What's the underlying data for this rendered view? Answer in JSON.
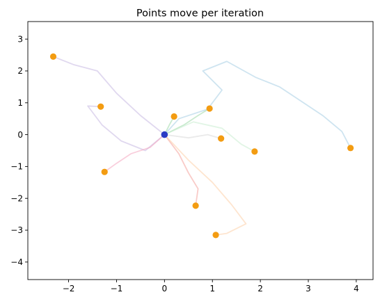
{
  "chart_data": {
    "type": "line",
    "title": "Points move per iteration",
    "xlabel": "",
    "ylabel": "",
    "xlim": [
      -2.85,
      4.35
    ],
    "ylim": [
      -4.55,
      3.55
    ],
    "xticks": [
      -2,
      -1,
      0,
      1,
      2,
      3,
      4
    ],
    "yticks": [
      -4,
      -3,
      -2,
      -1,
      0,
      1,
      2,
      3
    ],
    "grid": false,
    "legend": "none",
    "start_point": {
      "x": 0,
      "y": 0,
      "color": "#2b3bc4"
    },
    "endpoints": {
      "color": "#f39c12",
      "x": [
        -2.32,
        -1.33,
        -1.25,
        0.2,
        0.65,
        0.94,
        1.07,
        1.18,
        1.88,
        3.88
      ],
      "y": [
        2.45,
        0.88,
        -1.17,
        0.57,
        -2.23,
        0.82,
        -3.15,
        -0.12,
        -0.53,
        -0.42
      ]
    },
    "trajectories": [
      {
        "color": "#a6cee3",
        "points": [
          [
            0,
            0
          ],
          [
            0.3,
            0.5
          ],
          [
            0.9,
            0.8
          ],
          [
            1.2,
            1.4
          ],
          [
            0.8,
            2.0
          ],
          [
            1.3,
            2.3
          ],
          [
            1.9,
            1.8
          ],
          [
            2.4,
            1.5
          ],
          [
            2.9,
            1.0
          ],
          [
            3.3,
            0.6
          ],
          [
            3.7,
            0.1
          ],
          [
            3.88,
            -0.42
          ]
        ]
      },
      {
        "color": "#c7b8e2",
        "points": [
          [
            0,
            0
          ],
          [
            -0.5,
            0.6
          ],
          [
            -1.0,
            1.3
          ],
          [
            -1.4,
            2.0
          ],
          [
            -1.9,
            2.2
          ],
          [
            -2.32,
            2.45
          ]
        ]
      },
      {
        "color": "#c7b8e2",
        "points": [
          [
            0,
            0
          ],
          [
            -0.4,
            -0.5
          ],
          [
            -0.9,
            -0.2
          ],
          [
            -1.3,
            0.3
          ],
          [
            -1.6,
            0.9
          ],
          [
            -1.33,
            0.88
          ]
        ]
      },
      {
        "color": "#f4a6c0",
        "points": [
          [
            0,
            0
          ],
          [
            -0.3,
            -0.4
          ],
          [
            -0.7,
            -0.6
          ],
          [
            -1.0,
            -0.9
          ],
          [
            -1.25,
            -1.17
          ]
        ]
      },
      {
        "color": "#9fd8a8",
        "points": [
          [
            0,
            0
          ],
          [
            0.1,
            0.3
          ],
          [
            0.2,
            0.57
          ]
        ]
      },
      {
        "color": "#f4a09a",
        "points": [
          [
            0,
            0
          ],
          [
            0.3,
            -0.6
          ],
          [
            0.5,
            -1.2
          ],
          [
            0.7,
            -1.7
          ],
          [
            0.65,
            -2.23
          ]
        ]
      },
      {
        "color": "#9fd8a8",
        "points": [
          [
            0,
            0
          ],
          [
            0.4,
            0.3
          ],
          [
            0.7,
            0.6
          ],
          [
            0.94,
            0.82
          ]
        ]
      },
      {
        "color": "#fdcfa8",
        "points": [
          [
            0,
            0
          ],
          [
            0.5,
            -0.8
          ],
          [
            1.0,
            -1.5
          ],
          [
            1.4,
            -2.2
          ],
          [
            1.7,
            -2.8
          ],
          [
            1.3,
            -3.1
          ],
          [
            1.07,
            -3.15
          ]
        ]
      },
      {
        "color": "#d8d8d8",
        "points": [
          [
            0,
            0
          ],
          [
            0.5,
            -0.1
          ],
          [
            0.9,
            0.0
          ],
          [
            1.18,
            -0.12
          ]
        ]
      },
      {
        "color": "#c9eccf",
        "points": [
          [
            0,
            0
          ],
          [
            0.6,
            0.4
          ],
          [
            1.2,
            0.2
          ],
          [
            1.6,
            -0.3
          ],
          [
            1.88,
            -0.53
          ]
        ]
      }
    ]
  }
}
